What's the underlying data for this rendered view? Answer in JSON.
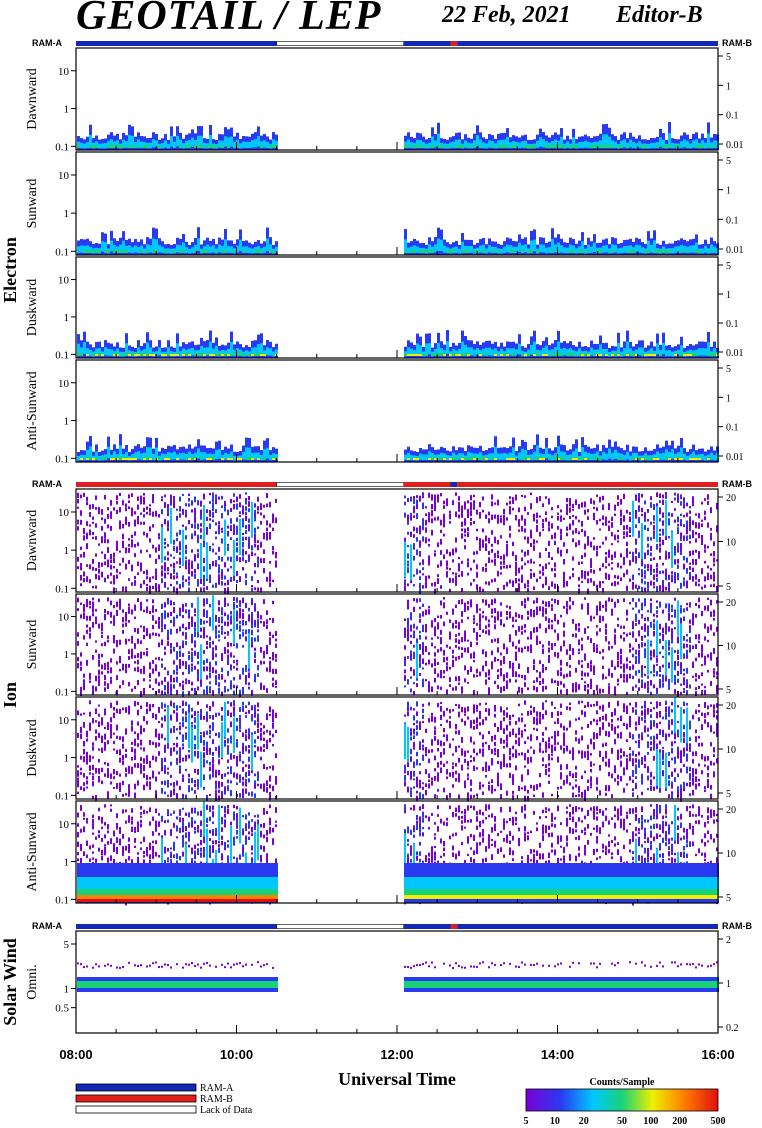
{
  "header": {
    "title": "GEOTAIL / LEP",
    "date": "22 Feb, 2021",
    "editor": "Editor-B"
  },
  "colors": {
    "ram_a": "#1428b8",
    "ram_b": "#e01e1e",
    "lack": "#ffffff",
    "axis": "#000000"
  },
  "chart_data": {
    "type": "heatmap",
    "xlabel": "Universal Time",
    "x_ticks": [
      "08:00",
      "10:00",
      "12:00",
      "14:00",
      "16:00"
    ],
    "x_range": [
      "08:00",
      "16:00"
    ],
    "ram_labels": {
      "left": "RAM-A",
      "right": "RAM-B"
    },
    "data_gap": [
      "10:30",
      "12:05"
    ],
    "ram_b_segment": [
      "12:40",
      "12:45"
    ],
    "colorbar": {
      "title": "Counts/Sample",
      "ticks": [
        "5",
        "10",
        "20",
        "50",
        "100",
        "200",
        "500"
      ],
      "scale": "log",
      "range": [
        5,
        500
      ],
      "colors": [
        "#7a00d6",
        "#2a3af0",
        "#00c8ff",
        "#18d27a",
        "#f0f000",
        "#ff8000",
        "#e01010"
      ]
    },
    "groups": [
      {
        "name": "Electron",
        "ram_bar": "ram_a",
        "panels": [
          {
            "label": "Dawnward",
            "left_ticks": [
              "10",
              "1",
              "0.1"
            ],
            "left_range": [
              0.08,
              40
            ],
            "right_ticks": [
              "5",
              "1",
              "0.1",
              "0.01"
            ]
          },
          {
            "label": "Sunward",
            "left_ticks": [
              "10",
              "1",
              "0.1"
            ],
            "left_range": [
              0.08,
              40
            ],
            "right_ticks": [
              "5",
              "1",
              "0.1",
              "0.01"
            ]
          },
          {
            "label": "Duskward",
            "left_ticks": [
              "10",
              "1",
              "0.1"
            ],
            "left_range": [
              0.08,
              40
            ],
            "right_ticks": [
              "5",
              "1",
              "0.1",
              "0.01"
            ]
          },
          {
            "label": "Anti-Sunward",
            "left_ticks": [
              "10",
              "1",
              "0.1"
            ],
            "left_range": [
              0.08,
              40
            ],
            "right_ticks": [
              "5",
              "1",
              "0.1",
              "0.01"
            ]
          }
        ]
      },
      {
        "name": "Ion",
        "ram_bar": "ram_b",
        "panels": [
          {
            "label": "Dawnward",
            "left_ticks": [
              "10",
              "1",
              "0.1"
            ],
            "left_range": [
              0.08,
              40
            ],
            "right_ticks": [
              "20",
              "10",
              "5"
            ]
          },
          {
            "label": "Sunward",
            "left_ticks": [
              "10",
              "1",
              "0.1"
            ],
            "left_range": [
              0.08,
              40
            ],
            "right_ticks": [
              "20",
              "10",
              "5"
            ]
          },
          {
            "label": "Duskward",
            "left_ticks": [
              "10",
              "1",
              "0.1"
            ],
            "left_range": [
              0.08,
              40
            ],
            "right_ticks": [
              "20",
              "10",
              "5"
            ]
          },
          {
            "label": "Anti-Sunward",
            "left_ticks": [
              "10",
              "1",
              "0.1"
            ],
            "left_range": [
              0.08,
              40
            ],
            "right_ticks": [
              "20",
              "10",
              "5"
            ]
          }
        ]
      },
      {
        "name": "Solar Wind",
        "ram_bar": "ram_a",
        "panels": [
          {
            "label": "Omni.",
            "left_ticks": [
              "5",
              "1",
              "0.5"
            ],
            "left_range": [
              0.2,
              8
            ],
            "right_ticks": [
              "2",
              "1",
              "0.2"
            ]
          }
        ]
      }
    ]
  },
  "legend": [
    {
      "label": "RAM-A",
      "color": "#1428b8"
    },
    {
      "label": "RAM-B",
      "color": "#e01e1e"
    },
    {
      "label": "Lack of Data",
      "color": "#ffffff"
    }
  ]
}
